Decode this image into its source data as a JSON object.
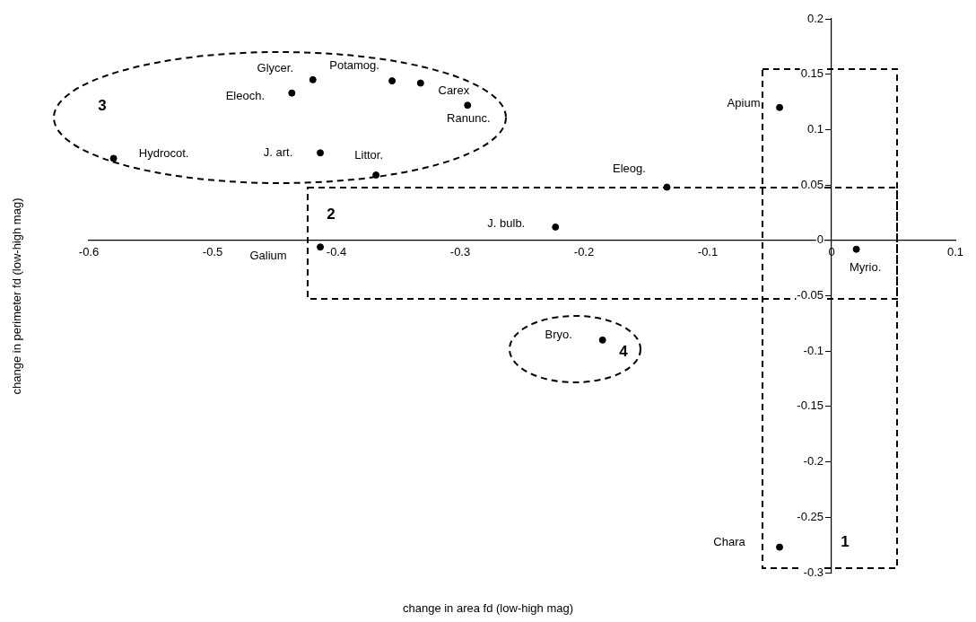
{
  "chart_data": {
    "type": "scatter",
    "xlabel": "change in area fd (low-high mag)",
    "ylabel": "change in perimeter fd (low-high mag)",
    "x": [
      -0.58,
      -0.436,
      -0.419,
      -0.355,
      -0.332,
      -0.294,
      -0.413,
      -0.368,
      -0.413,
      -0.223,
      -0.133,
      -0.042,
      0.02,
      -0.185,
      -0.042
    ],
    "series": [
      {
        "color": "#000000",
        "values": [
          0.074,
          0.133,
          0.145,
          0.144,
          0.142,
          0.122,
          0.079,
          0.059,
          -0.006,
          0.012,
          0.048,
          0.12,
          -0.008,
          -0.09,
          -0.277
        ]
      }
    ],
    "marker": "circle",
    "grid": false,
    "legend": false,
    "xlim": [
      -0.6,
      0.1
    ],
    "xticks": [
      -0.6,
      -0.5,
      -0.4,
      -0.3,
      -0.2,
      -0.1,
      0,
      0.1
    ],
    "ylim": [
      -0.3,
      0.2
    ],
    "yticks": [
      -0.3,
      -0.25,
      -0.2,
      -0.15,
      -0.1,
      -0.05,
      0,
      0.05,
      0.1,
      0.15,
      0.2
    ],
    "annotations": [
      {
        "text": "Hydrocot.",
        "x": -0.58,
        "y": 0.074
      },
      {
        "text": "Eleoch.",
        "x": -0.436,
        "y": 0.133
      },
      {
        "text": "Glycer.",
        "x": -0.419,
        "y": 0.145
      },
      {
        "text": "Potamog.",
        "x": -0.355,
        "y": 0.144
      },
      {
        "text": "Carex",
        "x": -0.332,
        "y": 0.142
      },
      {
        "text": "Ranunc.",
        "x": -0.294,
        "y": 0.122
      },
      {
        "text": "J. art.",
        "x": -0.413,
        "y": 0.079
      },
      {
        "text": "Littor.",
        "x": -0.368,
        "y": 0.059
      },
      {
        "text": "Galium",
        "x": -0.413,
        "y": -0.006
      },
      {
        "text": "J. bulb.",
        "x": -0.223,
        "y": 0.012
      },
      {
        "text": "Eleog.",
        "x": -0.133,
        "y": 0.048
      },
      {
        "text": "Apium",
        "x": -0.042,
        "y": 0.12
      },
      {
        "text": "Myrio.",
        "x": 0.02,
        "y": -0.008
      },
      {
        "text": "Bryo.",
        "x": -0.185,
        "y": -0.09
      },
      {
        "text": "Chara",
        "x": -0.042,
        "y": -0.277
      },
      "3",
      "2",
      "4",
      "1"
    ]
  }
}
